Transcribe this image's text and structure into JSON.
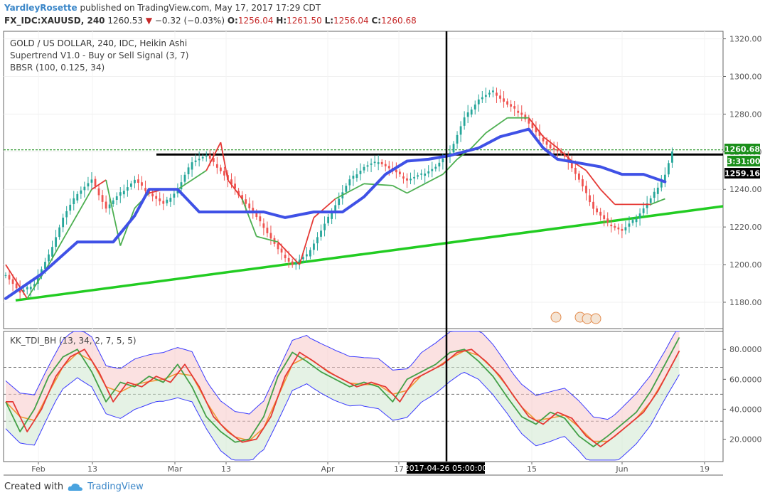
{
  "header": {
    "author": "YardleyRosette",
    "published_text": "published on TradingView.com, May 17, 2017 17:29 CDT",
    "symbol": "FX_IDC:XAUUSD, 240",
    "last": "1260.53",
    "change_arrow": "▼",
    "change": "−0.32 (−0.03%)",
    "open_label": "O:",
    "open": "1256.04",
    "high_label": "H:",
    "high": "1261.50",
    "low_label": "L:",
    "low": "1256.04",
    "close_label": "C:",
    "close": "1260.68"
  },
  "legend": {
    "title": "GOLD / US DOLLAR, 240, IDC, Heikin Ashi",
    "indicator1": "Supertrend V1.0 - Buy or Sell Signal (3, 7)",
    "indicator2": "BBSR (100, 0.125, 34)",
    "sub_indicator": "KK_TDI_BH (13, 34, 2, 7, 5, 5)"
  },
  "price_tags": {
    "last_price": "1260.68",
    "countdown": "3:31:00",
    "line_price": "1259.16"
  },
  "crosshair_time": "2017-04-26 05:00:00",
  "footer": {
    "created_with": "Created with",
    "brand": "TradingView"
  },
  "colors": {
    "up": "#26a69a",
    "down": "#ef5350",
    "supertrend_up": "#4caf50",
    "supertrend_down": "#e53935",
    "bbsr": "#3f51e6",
    "trendline": "#22cc22",
    "tdi_green": "#43a047",
    "tdi_red": "#e53935",
    "tdi_mid": "#f29837",
    "band_line": "#3a3aff"
  },
  "chart_data": {
    "type": "candlestick",
    "title": "GOLD / US DOLLAR, 240, IDC, Heikin Ashi",
    "price_axis": {
      "ticks": [
        "1180.00",
        "1200.00",
        "1220.00",
        "1240.00",
        "1260.00",
        "1280.00",
        "1300.00",
        "1320.00"
      ],
      "range": [
        1166,
        1324
      ]
    },
    "time_axis": {
      "ticks": [
        "Feb",
        "13",
        "Mar",
        "13",
        "Apr",
        "17",
        "15",
        "Jun",
        "19"
      ]
    },
    "tdi_axis": {
      "ticks": [
        "20.0000",
        "40.0000",
        "60.0000",
        "80.0000"
      ],
      "range": [
        5,
        92
      ],
      "levels": [
        32,
        50,
        68
      ]
    },
    "horizontal_lines": [
      1258.5,
      1261
    ],
    "trendline": {
      "from": {
        "x": "start",
        "price": 1181
      },
      "to": {
        "x": "end",
        "price": 1231
      }
    },
    "price_path": [
      [
        0,
        1195
      ],
      [
        4,
        1185
      ],
      [
        8,
        1190
      ],
      [
        12,
        1205
      ],
      [
        16,
        1225
      ],
      [
        20,
        1238
      ],
      [
        24,
        1245
      ],
      [
        28,
        1230
      ],
      [
        32,
        1238
      ],
      [
        36,
        1245
      ],
      [
        40,
        1238
      ],
      [
        44,
        1232
      ],
      [
        48,
        1240
      ],
      [
        52,
        1255
      ],
      [
        56,
        1258
      ],
      [
        60,
        1250
      ],
      [
        64,
        1240
      ],
      [
        68,
        1230
      ],
      [
        72,
        1220
      ],
      [
        76,
        1208
      ],
      [
        80,
        1200
      ],
      [
        84,
        1205
      ],
      [
        88,
        1218
      ],
      [
        92,
        1232
      ],
      [
        96,
        1245
      ],
      [
        100,
        1252
      ],
      [
        104,
        1255
      ],
      [
        108,
        1250
      ],
      [
        112,
        1245
      ],
      [
        116,
        1248
      ],
      [
        120,
        1252
      ],
      [
        124,
        1260
      ],
      [
        128,
        1278
      ],
      [
        132,
        1288
      ],
      [
        136,
        1292
      ],
      [
        140,
        1285
      ],
      [
        144,
        1280
      ],
      [
        148,
        1270
      ],
      [
        152,
        1262
      ],
      [
        156,
        1258
      ],
      [
        160,
        1245
      ],
      [
        164,
        1230
      ],
      [
        168,
        1222
      ],
      [
        172,
        1218
      ],
      [
        176,
        1225
      ],
      [
        180,
        1235
      ],
      [
        184,
        1248
      ],
      [
        186,
        1260
      ]
    ],
    "supertrend": [
      [
        0,
        1200
      ],
      [
        6,
        1182
      ],
      [
        12,
        1200
      ],
      [
        18,
        1220
      ],
      [
        24,
        1240
      ],
      [
        28,
        1245
      ],
      [
        32,
        1210
      ],
      [
        36,
        1230
      ],
      [
        40,
        1238
      ],
      [
        44,
        1240
      ],
      [
        48,
        1240
      ],
      [
        52,
        1245
      ],
      [
        56,
        1250
      ],
      [
        60,
        1265
      ],
      [
        62,
        1245
      ],
      [
        66,
        1235
      ],
      [
        70,
        1215
      ],
      [
        76,
        1212
      ],
      [
        82,
        1200
      ],
      [
        86,
        1225
      ],
      [
        92,
        1235
      ],
      [
        100,
        1243
      ],
      [
        108,
        1242
      ],
      [
        112,
        1238
      ],
      [
        116,
        1242
      ],
      [
        122,
        1248
      ],
      [
        126,
        1256
      ],
      [
        130,
        1262
      ],
      [
        134,
        1270
      ],
      [
        140,
        1278
      ],
      [
        146,
        1278
      ],
      [
        150,
        1268
      ],
      [
        154,
        1262
      ],
      [
        158,
        1255
      ],
      [
        162,
        1250
      ],
      [
        166,
        1240
      ],
      [
        170,
        1232
      ],
      [
        176,
        1232
      ],
      [
        180,
        1232
      ],
      [
        184,
        1235
      ]
    ],
    "bbsr": [
      [
        0,
        1182
      ],
      [
        10,
        1195
      ],
      [
        20,
        1212
      ],
      [
        30,
        1212
      ],
      [
        36,
        1226
      ],
      [
        40,
        1240
      ],
      [
        48,
        1240
      ],
      [
        54,
        1228
      ],
      [
        60,
        1228
      ],
      [
        66,
        1228
      ],
      [
        72,
        1228
      ],
      [
        78,
        1225
      ],
      [
        86,
        1228
      ],
      [
        94,
        1228
      ],
      [
        100,
        1236
      ],
      [
        106,
        1248
      ],
      [
        112,
        1255
      ],
      [
        118,
        1256
      ],
      [
        124,
        1258
      ],
      [
        132,
        1262
      ],
      [
        138,
        1268
      ],
      [
        142,
        1270
      ],
      [
        146,
        1272
      ],
      [
        150,
        1262
      ],
      [
        154,
        1256
      ],
      [
        160,
        1254
      ],
      [
        166,
        1252
      ],
      [
        172,
        1248
      ],
      [
        178,
        1248
      ],
      [
        184,
        1244
      ]
    ],
    "tdi": [
      [
        0,
        45
      ],
      [
        4,
        25
      ],
      [
        8,
        40
      ],
      [
        12,
        62
      ],
      [
        16,
        75
      ],
      [
        20,
        80
      ],
      [
        24,
        65
      ],
      [
        28,
        45
      ],
      [
        32,
        58
      ],
      [
        36,
        55
      ],
      [
        40,
        62
      ],
      [
        44,
        58
      ],
      [
        48,
        70
      ],
      [
        52,
        55
      ],
      [
        56,
        35
      ],
      [
        60,
        25
      ],
      [
        64,
        18
      ],
      [
        68,
        20
      ],
      [
        72,
        35
      ],
      [
        76,
        62
      ],
      [
        80,
        78
      ],
      [
        84,
        72
      ],
      [
        88,
        65
      ],
      [
        92,
        60
      ],
      [
        96,
        55
      ],
      [
        100,
        58
      ],
      [
        104,
        55
      ],
      [
        108,
        45
      ],
      [
        112,
        60
      ],
      [
        116,
        65
      ],
      [
        120,
        70
      ],
      [
        124,
        78
      ],
      [
        128,
        80
      ],
      [
        132,
        72
      ],
      [
        136,
        62
      ],
      [
        140,
        48
      ],
      [
        144,
        35
      ],
      [
        148,
        30
      ],
      [
        152,
        38
      ],
      [
        156,
        34
      ],
      [
        160,
        22
      ],
      [
        164,
        15
      ],
      [
        168,
        22
      ],
      [
        172,
        30
      ],
      [
        176,
        38
      ],
      [
        180,
        52
      ],
      [
        184,
        70
      ],
      [
        188,
        88
      ]
    ]
  }
}
